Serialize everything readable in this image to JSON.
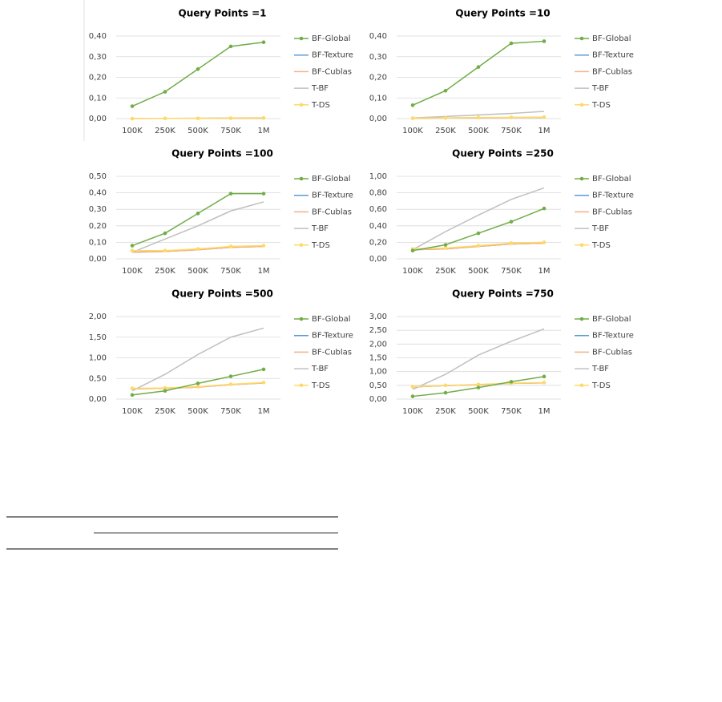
{
  "chart_data": [
    {
      "type": "line",
      "title": "Query Points =1",
      "categories": [
        "100K",
        "250K",
        "500K",
        "750K",
        "1M"
      ],
      "ylim": [
        0,
        0.4
      ],
      "yticks": [
        {
          "value": 0,
          "label": "0,00"
        },
        {
          "value": 0.1,
          "label": "0,10"
        },
        {
          "value": 0.2,
          "label": "0,20"
        },
        {
          "value": 0.3,
          "label": "0,30"
        },
        {
          "value": 0.4,
          "label": "0,40"
        }
      ],
      "grid": true,
      "series": [
        {
          "name": "BF-Texture",
          "color": "#5b9bd5",
          "marker": false,
          "values": [
            0.001,
            0.001,
            0.001,
            0.002,
            0.002
          ]
        },
        {
          "name": "BF-Cublas",
          "color": "#f4b183",
          "marker": false,
          "values": [
            0.001,
            0.001,
            0.001,
            0.002,
            0.002
          ]
        },
        {
          "name": "T-BF",
          "color": "#bfbfbf",
          "marker": false,
          "values": [
            0.001,
            0.001,
            0.002,
            0.003,
            0.004
          ]
        },
        {
          "name": "T-DS",
          "color": "#ffd966",
          "marker": true,
          "values": [
            0,
            0.001,
            0.001,
            0.002,
            0.003
          ]
        },
        {
          "name": "BF-Global",
          "color": "#70ad47",
          "marker": true,
          "values": [
            0.06,
            0.13,
            0.24,
            0.35,
            0.37
          ]
        }
      ]
    },
    {
      "type": "line",
      "title": "Query Points =10",
      "categories": [
        "100K",
        "250K",
        "500K",
        "750K",
        "1M"
      ],
      "ylim": [
        0,
        0.4
      ],
      "yticks": [
        {
          "value": 0,
          "label": "0,00"
        },
        {
          "value": 0.1,
          "label": "0,10"
        },
        {
          "value": 0.2,
          "label": "0,20"
        },
        {
          "value": 0.3,
          "label": "0,30"
        },
        {
          "value": 0.4,
          "label": "0,40"
        }
      ],
      "grid": true,
      "series": [
        {
          "name": "BF-Texture",
          "color": "#5b9bd5",
          "marker": false,
          "values": [
            0.002,
            0.003,
            0.004,
            0.005,
            0.006
          ]
        },
        {
          "name": "BF-Cublas",
          "color": "#f4b183",
          "marker": false,
          "values": [
            0.002,
            0.003,
            0.004,
            0.005,
            0.006
          ]
        },
        {
          "name": "T-BF",
          "color": "#bfbfbf",
          "marker": false,
          "values": [
            0.003,
            0.01,
            0.018,
            0.025,
            0.035
          ]
        },
        {
          "name": "T-DS",
          "color": "#ffd966",
          "marker": true,
          "values": [
            0.002,
            0.003,
            0.005,
            0.006,
            0.007
          ]
        },
        {
          "name": "BF-Global",
          "color": "#70ad47",
          "marker": true,
          "values": [
            0.065,
            0.135,
            0.25,
            0.365,
            0.375
          ]
        }
      ]
    },
    {
      "type": "line",
      "title": "Query Points =100",
      "categories": [
        "100K",
        "250K",
        "500K",
        "750K",
        "1M"
      ],
      "ylim": [
        0,
        0.5
      ],
      "yticks": [
        {
          "value": 0,
          "label": "0,00"
        },
        {
          "value": 0.1,
          "label": "0,10"
        },
        {
          "value": 0.2,
          "label": "0,20"
        },
        {
          "value": 0.3,
          "label": "0,30"
        },
        {
          "value": 0.4,
          "label": "0,40"
        },
        {
          "value": 0.5,
          "label": "0,50"
        }
      ],
      "grid": true,
      "series": [
        {
          "name": "BF-Texture",
          "color": "#5b9bd5",
          "marker": false,
          "values": [
            0.04,
            0.045,
            0.055,
            0.07,
            0.075
          ]
        },
        {
          "name": "BF-Cublas",
          "color": "#f4b183",
          "marker": false,
          "values": [
            0.04,
            0.045,
            0.055,
            0.07,
            0.075
          ]
        },
        {
          "name": "T-BF",
          "color": "#bfbfbf",
          "marker": false,
          "values": [
            0.04,
            0.12,
            0.2,
            0.29,
            0.345
          ]
        },
        {
          "name": "T-DS",
          "color": "#ffd966",
          "marker": true,
          "values": [
            0.05,
            0.05,
            0.06,
            0.075,
            0.08
          ]
        },
        {
          "name": "BF-Global",
          "color": "#70ad47",
          "marker": true,
          "values": [
            0.08,
            0.155,
            0.275,
            0.395,
            0.395
          ]
        }
      ]
    },
    {
      "type": "line",
      "title": "Query Points =250",
      "categories": [
        "100K",
        "250K",
        "500K",
        "750K",
        "1M"
      ],
      "ylim": [
        0,
        1
      ],
      "yticks": [
        {
          "value": 0,
          "label": "0,00"
        },
        {
          "value": 0.2,
          "label": "0,20"
        },
        {
          "value": 0.4,
          "label": "0,40"
        },
        {
          "value": 0.6,
          "label": "0,60"
        },
        {
          "value": 0.8,
          "label": "0,80"
        },
        {
          "value": 1,
          "label": "1,00"
        }
      ],
      "grid": true,
      "series": [
        {
          "name": "BF-Texture",
          "color": "#5b9bd5",
          "marker": false,
          "values": [
            0.11,
            0.12,
            0.15,
            0.18,
            0.19
          ]
        },
        {
          "name": "BF-Cublas",
          "color": "#f4b183",
          "marker": false,
          "values": [
            0.11,
            0.12,
            0.15,
            0.18,
            0.19
          ]
        },
        {
          "name": "T-BF",
          "color": "#bfbfbf",
          "marker": false,
          "values": [
            0.11,
            0.33,
            0.53,
            0.72,
            0.86
          ]
        },
        {
          "name": "T-DS",
          "color": "#ffd966",
          "marker": true,
          "values": [
            0.12,
            0.13,
            0.16,
            0.19,
            0.2
          ]
        },
        {
          "name": "BF-Global",
          "color": "#70ad47",
          "marker": true,
          "values": [
            0.1,
            0.17,
            0.31,
            0.45,
            0.61
          ]
        }
      ]
    },
    {
      "type": "line",
      "title": "Query Points =500",
      "categories": [
        "100K",
        "250K",
        "500K",
        "750K",
        "1M"
      ],
      "ylim": [
        0,
        2
      ],
      "yticks": [
        {
          "value": 0,
          "label": "0,00"
        },
        {
          "value": 0.5,
          "label": "0,50"
        },
        {
          "value": 1,
          "label": "1,00"
        },
        {
          "value": 1.5,
          "label": "1,50"
        },
        {
          "value": 2,
          "label": "2,00"
        }
      ],
      "grid": true,
      "series": [
        {
          "name": "BF-Texture",
          "color": "#5b9bd5",
          "marker": false,
          "values": [
            0.25,
            0.26,
            0.29,
            0.35,
            0.39
          ]
        },
        {
          "name": "BF-Cublas",
          "color": "#f4b183",
          "marker": false,
          "values": [
            0.25,
            0.26,
            0.29,
            0.35,
            0.39
          ]
        },
        {
          "name": "T-BF",
          "color": "#bfbfbf",
          "marker": false,
          "values": [
            0.2,
            0.6,
            1.08,
            1.5,
            1.72
          ]
        },
        {
          "name": "T-DS",
          "color": "#ffd966",
          "marker": true,
          "values": [
            0.26,
            0.27,
            0.3,
            0.36,
            0.4
          ]
        },
        {
          "name": "BF-Global",
          "color": "#70ad47",
          "marker": true,
          "values": [
            0.1,
            0.2,
            0.38,
            0.55,
            0.72
          ]
        }
      ]
    },
    {
      "type": "line",
      "title": "Query Points =750",
      "categories": [
        "100K",
        "250K",
        "500K",
        "750K",
        "1M"
      ],
      "ylim": [
        0,
        3
      ],
      "yticks": [
        {
          "value": 0,
          "label": "0,00"
        },
        {
          "value": 0.5,
          "label": "0,50"
        },
        {
          "value": 1,
          "label": "1,00"
        },
        {
          "value": 1.5,
          "label": "1,50"
        },
        {
          "value": 2,
          "label": "2,00"
        },
        {
          "value": 2.5,
          "label": "2,50"
        },
        {
          "value": 3,
          "label": "3,00"
        }
      ],
      "grid": true,
      "series": [
        {
          "name": "BF-Texture",
          "color": "#5b9bd5",
          "marker": false,
          "values": [
            0.44,
            0.49,
            0.52,
            0.57,
            0.59
          ]
        },
        {
          "name": "BF-Cublas",
          "color": "#f4b183",
          "marker": false,
          "values": [
            0.44,
            0.49,
            0.52,
            0.57,
            0.59
          ]
        },
        {
          "name": "T-BF",
          "color": "#bfbfbf",
          "marker": false,
          "values": [
            0.35,
            0.9,
            1.6,
            2.1,
            2.55
          ]
        },
        {
          "name": "T-DS",
          "color": "#ffd966",
          "marker": true,
          "values": [
            0.45,
            0.5,
            0.53,
            0.58,
            0.6
          ]
        },
        {
          "name": "BF-Global",
          "color": "#70ad47",
          "marker": true,
          "values": [
            0.1,
            0.23,
            0.42,
            0.63,
            0.82
          ]
        }
      ]
    }
  ]
}
